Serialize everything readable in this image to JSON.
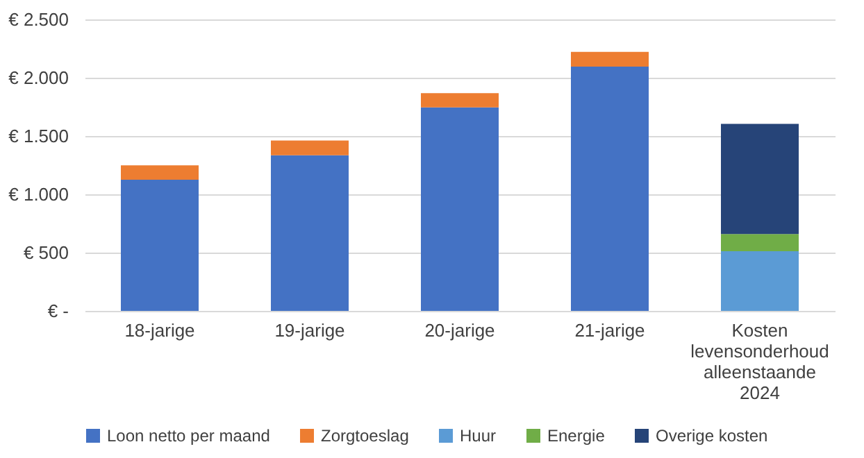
{
  "chart_data": {
    "type": "bar",
    "stacked": true,
    "categories": [
      "18-jarige",
      "19-jarige",
      "20-jarige",
      "21-jarige",
      "Kosten levensonderhoud alleenstaande 2024"
    ],
    "series": [
      {
        "name": "Loon netto per maand",
        "color": "#4472c4",
        "values": [
          1125,
          1335,
          1745,
          2095,
          null
        ]
      },
      {
        "name": "Zorgtoeslag",
        "color": "#ed7d31",
        "values": [
          123,
          127,
          123,
          127,
          null
        ]
      },
      {
        "name": "Huur",
        "color": "#5b9bd5",
        "values": [
          null,
          null,
          null,
          null,
          512
        ]
      },
      {
        "name": "Energie",
        "color": "#70ad47",
        "values": [
          null,
          null,
          null,
          null,
          147
        ]
      },
      {
        "name": "Overige kosten",
        "color": "#264478",
        "values": [
          null,
          null,
          null,
          null,
          945
        ]
      }
    ],
    "ylim": [
      0,
      2500
    ],
    "yticks": [
      {
        "value": 0,
        "label": "€ -"
      },
      {
        "value": 500,
        "label": "€ 500"
      },
      {
        "value": 1000,
        "label": "€ 1.000"
      },
      {
        "value": 1500,
        "label": "€ 1.500"
      },
      {
        "value": 2000,
        "label": "€ 2.000"
      },
      {
        "value": 2500,
        "label": "€ 2.500"
      }
    ],
    "grid": "y",
    "legend": "bottom"
  }
}
